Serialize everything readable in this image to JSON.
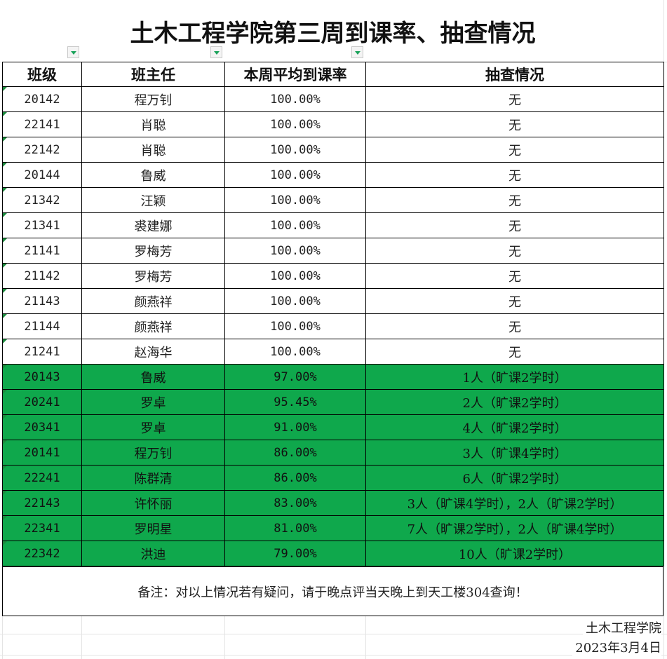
{
  "title": "土木工程学院第三周到课率、抽查情况",
  "headers": [
    "班级",
    "班主任",
    "本周平均到课率",
    "抽查情况"
  ],
  "rows": [
    {
      "class": "20142",
      "teacher": "程万钊",
      "rate": "100.00%",
      "check": "无",
      "flagged": false
    },
    {
      "class": "22141",
      "teacher": "肖聪",
      "rate": "100.00%",
      "check": "无",
      "flagged": false
    },
    {
      "class": "22142",
      "teacher": "肖聪",
      "rate": "100.00%",
      "check": "无",
      "flagged": false
    },
    {
      "class": "20144",
      "teacher": "鲁威",
      "rate": "100.00%",
      "check": "无",
      "flagged": false
    },
    {
      "class": "21342",
      "teacher": "汪颖",
      "rate": "100.00%",
      "check": "无",
      "flagged": false
    },
    {
      "class": "21341",
      "teacher": "裘建娜",
      "rate": "100.00%",
      "check": "无",
      "flagged": false
    },
    {
      "class": "21141",
      "teacher": "罗梅芳",
      "rate": "100.00%",
      "check": "无",
      "flagged": false
    },
    {
      "class": "21142",
      "teacher": "罗梅芳",
      "rate": "100.00%",
      "check": "无",
      "flagged": false
    },
    {
      "class": "21143",
      "teacher": "颜燕祥",
      "rate": "100.00%",
      "check": "无",
      "flagged": false
    },
    {
      "class": "21144",
      "teacher": "颜燕祥",
      "rate": "100.00%",
      "check": "无",
      "flagged": false
    },
    {
      "class": "21241",
      "teacher": "赵海华",
      "rate": "100.00%",
      "check": "无",
      "flagged": false
    },
    {
      "class": "20143",
      "teacher": "鲁威",
      "rate": "97.00%",
      "check": "1人（旷课2学时）",
      "flagged": true
    },
    {
      "class": "20241",
      "teacher": "罗卓",
      "rate": "95.45%",
      "check": "2人（旷课2学时）",
      "flagged": true
    },
    {
      "class": "20341",
      "teacher": "罗卓",
      "rate": "91.00%",
      "check": "4人（旷课2学时）",
      "flagged": true
    },
    {
      "class": "20141",
      "teacher": "程万钊",
      "rate": "86.00%",
      "check": "3人（旷课4学时）",
      "flagged": true
    },
    {
      "class": "22241",
      "teacher": "陈群清",
      "rate": "86.00%",
      "check": "6人（旷课2学时）",
      "flagged": true
    },
    {
      "class": "22143",
      "teacher": "许怀丽",
      "rate": "83.00%",
      "check": "3人（旷课4学时），2人（旷课2学时）",
      "flagged": true
    },
    {
      "class": "22341",
      "teacher": "罗明星",
      "rate": "81.00%",
      "check": "7人（旷课2学时），2人（旷课4学时）",
      "flagged": true
    },
    {
      "class": "22342",
      "teacher": "洪迪",
      "rate": "79.00%",
      "check": "10人（旷课2学时）",
      "flagged": true
    }
  ],
  "note": "备注：对以上情况若有疑问，请于晚点评当天晚上到天工楼304查询！",
  "footer": {
    "org": "土木工程学院",
    "date": "2023年3月4日"
  },
  "colors": {
    "flag_row": "#0fa84c",
    "filter_arrow": "#1aa35a"
  }
}
